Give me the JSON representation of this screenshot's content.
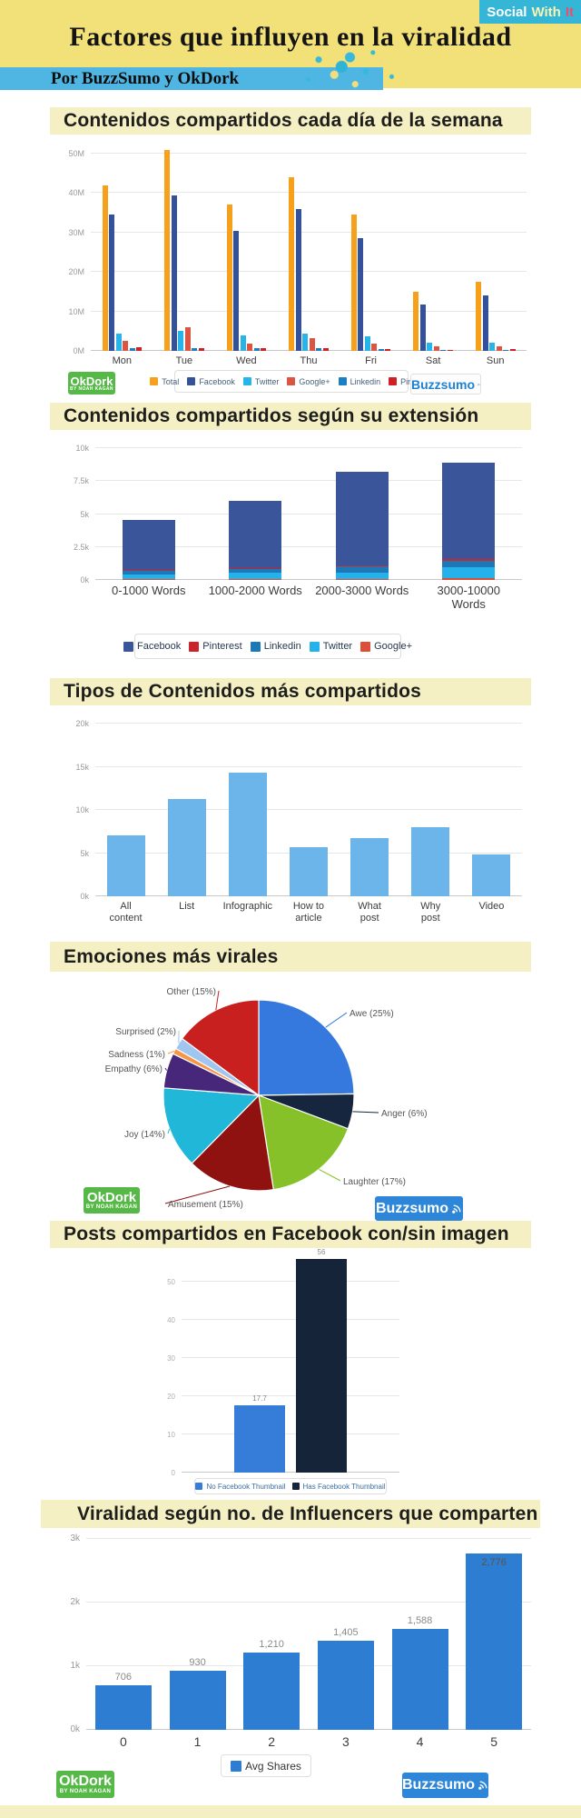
{
  "header": {
    "logo_social": "Social",
    "logo_with": "With",
    "logo_it": "It",
    "title": "Factores que influyen en la viralidad",
    "subtitle": "Por BuzzSumo y OkDork"
  },
  "branding": {
    "okdork_name": "OkDork",
    "okdork_byline": "BY NOAH KAGAN",
    "buzzsumo_name": "Buzzsumo"
  },
  "colors": {
    "header_bg": "#f2e179",
    "banner_bg": "#4fb6e3",
    "section_title_bg": "#f5efc4",
    "social_with_it_bg": "#35b6d6",
    "social_with_it_it": "#e84f72",
    "okdork_green": "#56b947",
    "buzzsumo_blue": "#2e86d8"
  },
  "chart_data": [
    {
      "id": "shares_by_day",
      "type": "bar",
      "title": "Contenidos compartidos cada día de la semana",
      "categories": [
        "Mon",
        "Tue",
        "Wed",
        "Thu",
        "Fri",
        "Sat",
        "Sun"
      ],
      "series": [
        {
          "name": "Total",
          "color": "#f7a01b",
          "values": [
            42,
            51,
            37,
            44,
            34.5,
            15,
            17.5
          ]
        },
        {
          "name": "Facebook",
          "color": "#34519b",
          "values": [
            34.5,
            39.5,
            30.5,
            36,
            28.5,
            11.8,
            14
          ]
        },
        {
          "name": "Twitter",
          "color": "#27b4ea",
          "values": [
            4.5,
            5,
            4,
            4.5,
            3.8,
            2,
            2.2
          ]
        },
        {
          "name": "Google+",
          "color": "#dc5442",
          "values": [
            2.5,
            6,
            1.8,
            3.3,
            1.8,
            1.2,
            1.2
          ]
        },
        {
          "name": "Linkedin",
          "color": "#1c7fc4",
          "values": [
            0.8,
            0.8,
            0.6,
            0.7,
            0.5,
            0.3,
            0.3
          ]
        },
        {
          "name": "Pinterest",
          "color": "#cf2026",
          "values": [
            1,
            0.8,
            0.6,
            0.6,
            0.5,
            0.3,
            0.4
          ]
        }
      ],
      "unit": "millions of shares",
      "yticks": [
        "0M",
        "10M",
        "20M",
        "30M",
        "40M",
        "50M"
      ],
      "ytick_values": [
        0,
        10,
        20,
        30,
        40,
        50
      ],
      "ylim": [
        0,
        50
      ],
      "grid": true,
      "legend_position": "bottom"
    },
    {
      "id": "shares_by_length",
      "type": "stacked-bar",
      "title": "Contenidos compartidos según su extensión",
      "categories": [
        "0-1000 Words",
        "1000-2000 Words",
        "2000-3000 Words",
        "3000-10000 Words"
      ],
      "category_lines": [
        [
          "0-1000 Words"
        ],
        [
          "1000-2000 Words"
        ],
        [
          "2000-3000 Words"
        ],
        [
          "3000-10000",
          "Words"
        ]
      ],
      "series": [
        {
          "name": "Facebook",
          "color": "#3b559b",
          "values": [
            3.85,
            5.1,
            7.1,
            7.3
          ]
        },
        {
          "name": "Pinterest",
          "color": "#c9252c",
          "values": [
            0.06,
            0.07,
            0.08,
            0.18
          ]
        },
        {
          "name": "Linkedin",
          "color": "#1d78b8",
          "values": [
            0.25,
            0.3,
            0.45,
            0.45
          ]
        },
        {
          "name": "Twitter",
          "color": "#25b2ea",
          "values": [
            0.32,
            0.45,
            0.5,
            0.85
          ]
        },
        {
          "name": "Google+",
          "color": "#db4f38",
          "values": [
            0.1,
            0.08,
            0.08,
            0.12
          ]
        }
      ],
      "stack_order": [
        "Google+",
        "Twitter",
        "Linkedin",
        "Pinterest",
        "Facebook"
      ],
      "unit": "thousands of shares",
      "yticks": [
        "0k",
        "2.5k",
        "5k",
        "7.5k",
        "10k"
      ],
      "ytick_values": [
        0,
        2.5,
        5,
        7.5,
        10
      ],
      "ylim": [
        0,
        10
      ],
      "grid": true,
      "legend_position": "bottom"
    },
    {
      "id": "shares_by_content_type",
      "type": "bar",
      "title": "Tipos de Contenidos más compartidos",
      "categories": [
        "All content",
        "List",
        "Infographic",
        "How to article",
        "What post",
        "Why post",
        "Video"
      ],
      "category_lines": [
        [
          "All",
          "content"
        ],
        [
          "List"
        ],
        [
          "Infographic"
        ],
        [
          "How to",
          "article"
        ],
        [
          "What",
          "post"
        ],
        [
          "Why",
          "post"
        ],
        [
          "Video"
        ]
      ],
      "values": [
        7.1,
        11.3,
        14.3,
        5.7,
        6.7,
        8,
        4.8
      ],
      "bar_color": "#6cb5ea",
      "unit": "thousands of shares",
      "yticks": [
        "0k",
        "5k",
        "10k",
        "15k",
        "20k"
      ],
      "ytick_values": [
        0,
        5,
        10,
        15,
        20
      ],
      "ylim": [
        0,
        20
      ],
      "grid": true
    },
    {
      "id": "viral_emotions",
      "type": "pie",
      "title": "Emociones más virales",
      "slices": [
        {
          "label": "Awe",
          "pct": 25,
          "color": "#3679de"
        },
        {
          "label": "Anger",
          "pct": 6,
          "color": "#16263e"
        },
        {
          "label": "Laughter",
          "pct": 17,
          "color": "#86c12a"
        },
        {
          "label": "Amusement",
          "pct": 15,
          "color": "#8f1211"
        },
        {
          "label": "Joy",
          "pct": 14,
          "color": "#20b7d8"
        },
        {
          "label": "Empathy",
          "pct": 6,
          "color": "#46277a"
        },
        {
          "label": "Sadness",
          "pct": 1,
          "color": "#f79646"
        },
        {
          "label": "Surprised",
          "pct": 2,
          "color": "#9fc5f0"
        },
        {
          "label": "Other",
          "pct": 15,
          "color": "#c8201e"
        }
      ],
      "label_format": "Label (NN%)"
    },
    {
      "id": "facebook_thumbnail",
      "type": "bar",
      "title": "Posts compartidos en Facebook con/sin imagen",
      "series": [
        {
          "name": "No Facebook Thumbnail",
          "color": "#357dd8",
          "values": [
            17.7
          ]
        },
        {
          "name": "Has Facebook Thumbnail",
          "color": "#152438",
          "values": [
            56
          ]
        }
      ],
      "value_labels": [
        "17.7",
        "56"
      ],
      "yticks": [
        "0",
        "10",
        "20",
        "30",
        "40",
        "50"
      ],
      "ytick_values": [
        0,
        10,
        20,
        30,
        40,
        50
      ],
      "ylim": [
        0,
        57
      ],
      "grid": true,
      "legend_position": "bottom"
    },
    {
      "id": "shares_by_influencers",
      "type": "bar",
      "title": "Viralidad según no. de Influencers que comparten",
      "categories": [
        "0",
        "1",
        "2",
        "3",
        "4",
        "5"
      ],
      "values": [
        706,
        930,
        1210,
        1405,
        1588,
        2776
      ],
      "value_labels": [
        "706",
        "930",
        "1,210",
        "1,405",
        "1,588",
        "2,776"
      ],
      "legend_label": "Avg Shares",
      "bar_color": "#2d7dd2",
      "yticks": [
        "0k",
        "1k",
        "2k",
        "3k"
      ],
      "ytick_values": [
        0,
        1000,
        2000,
        3000
      ],
      "ylim": [
        0,
        3000
      ],
      "grid": true,
      "legend_position": "bottom"
    }
  ]
}
